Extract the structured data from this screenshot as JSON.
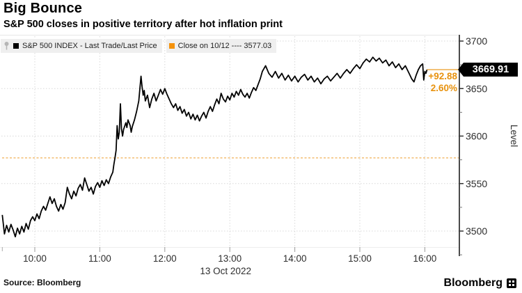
{
  "header": {
    "title": "Big Bounce",
    "subtitle": "S&P 500 closes in positive territory after hot inflation print"
  },
  "legend": {
    "items": [
      {
        "label": "S&P 500 INDEX - Last Trade/Last Price",
        "marker_color": "#000000"
      },
      {
        "label": "Close on 10/12 ---- 3577.03",
        "marker_color": "#f5920b"
      }
    ]
  },
  "price_flag": {
    "value": "3669.91",
    "change": "+92.88",
    "change_pct": "2.60%"
  },
  "axes": {
    "y_label": "Level",
    "y_ticks": [
      3500,
      3550,
      3600,
      3650,
      3700
    ],
    "y_minor_ticks": [
      3475,
      3525,
      3575,
      3625,
      3675
    ],
    "x_ticks": [
      "10:00",
      "11:00",
      "12:00",
      "13:00",
      "14:00",
      "15:00",
      "16:00"
    ],
    "date": "13 Oct 2022"
  },
  "footer": {
    "source": "Source: Bloomberg",
    "brand": "Bloomberg"
  },
  "colors": {
    "line": "#000000",
    "close_line": "#f0b055",
    "accent_orange": "#e8920e",
    "grid": "#d8d8d8",
    "axis": "#4a4a4a",
    "tick_label": "#2d2d2d",
    "legend_bg": "#efefef"
  },
  "chart_data": {
    "type": "line",
    "title": "Big Bounce",
    "subtitle": "S&P 500 closes in positive territory after hot inflation print",
    "xlabel": "13 Oct 2022 (09:30 - 16:00)",
    "ylabel": "Level",
    "ylim": [
      3475,
      3710
    ],
    "x_unit": "minutes_after_0930",
    "x_tick_labels": [
      "10:00",
      "11:00",
      "12:00",
      "13:00",
      "14:00",
      "15:00",
      "16:00"
    ],
    "grid": true,
    "legend_position": "top",
    "reference_line": {
      "name": "Close on 10/12",
      "value": 3577.03,
      "style": "dashed"
    },
    "last": {
      "value": 3669.91,
      "change": 92.88,
      "change_pct": 2.6
    },
    "series": [
      {
        "name": "S&P 500 INDEX - Last Trade/Last Price",
        "points": [
          [
            0,
            3517
          ],
          [
            2,
            3497
          ],
          [
            4,
            3506
          ],
          [
            6,
            3499
          ],
          [
            8,
            3507
          ],
          [
            10,
            3501
          ],
          [
            12,
            3494
          ],
          [
            14,
            3503
          ],
          [
            16,
            3497
          ],
          [
            18,
            3505
          ],
          [
            20,
            3499
          ],
          [
            22,
            3508
          ],
          [
            24,
            3502
          ],
          [
            26,
            3511
          ],
          [
            28,
            3515
          ],
          [
            30,
            3511
          ],
          [
            32,
            3518
          ],
          [
            34,
            3513
          ],
          [
            36,
            3521
          ],
          [
            38,
            3526
          ],
          [
            40,
            3522
          ],
          [
            42,
            3529
          ],
          [
            44,
            3536
          ],
          [
            46,
            3529
          ],
          [
            48,
            3534
          ],
          [
            50,
            3526
          ],
          [
            52,
            3521
          ],
          [
            54,
            3528
          ],
          [
            56,
            3523
          ],
          [
            58,
            3530
          ],
          [
            60,
            3546
          ],
          [
            62,
            3539
          ],
          [
            64,
            3534
          ],
          [
            66,
            3542
          ],
          [
            68,
            3537
          ],
          [
            70,
            3545
          ],
          [
            72,
            3549
          ],
          [
            74,
            3543
          ],
          [
            76,
            3556
          ],
          [
            78,
            3549
          ],
          [
            80,
            3542
          ],
          [
            82,
            3546
          ],
          [
            84,
            3539
          ],
          [
            86,
            3547
          ],
          [
            88,
            3551
          ],
          [
            90,
            3546
          ],
          [
            92,
            3553
          ],
          [
            94,
            3548
          ],
          [
            96,
            3554
          ],
          [
            98,
            3550
          ],
          [
            100,
            3557
          ],
          [
            102,
            3562
          ],
          [
            103,
            3570
          ],
          [
            104,
            3577
          ],
          [
            105,
            3585
          ],
          [
            106,
            3611
          ],
          [
            107,
            3597
          ],
          [
            108,
            3604
          ],
          [
            109,
            3634
          ],
          [
            110,
            3608
          ],
          [
            111,
            3600
          ],
          [
            112,
            3607
          ],
          [
            114,
            3614
          ],
          [
            115,
            3609
          ],
          [
            116,
            3617
          ],
          [
            118,
            3611
          ],
          [
            119,
            3604
          ],
          [
            120,
            3610
          ],
          [
            122,
            3617
          ],
          [
            124,
            3626
          ],
          [
            126,
            3637
          ],
          [
            128,
            3663
          ],
          [
            129,
            3652
          ],
          [
            130,
            3643
          ],
          [
            131,
            3648
          ],
          [
            132,
            3637
          ],
          [
            134,
            3643
          ],
          [
            136,
            3630
          ],
          [
            138,
            3639
          ],
          [
            140,
            3645
          ],
          [
            142,
            3637
          ],
          [
            144,
            3643
          ],
          [
            146,
            3649
          ],
          [
            148,
            3644
          ],
          [
            150,
            3650
          ],
          [
            152,
            3644
          ],
          [
            154,
            3639
          ],
          [
            156,
            3634
          ],
          [
            158,
            3630
          ],
          [
            160,
            3634
          ],
          [
            162,
            3627
          ],
          [
            164,
            3631
          ],
          [
            166,
            3624
          ],
          [
            168,
            3628
          ],
          [
            170,
            3621
          ],
          [
            172,
            3625
          ],
          [
            174,
            3618
          ],
          [
            176,
            3623
          ],
          [
            178,
            3617
          ],
          [
            180,
            3622
          ],
          [
            182,
            3616
          ],
          [
            184,
            3621
          ],
          [
            186,
            3625
          ],
          [
            188,
            3619
          ],
          [
            190,
            3626
          ],
          [
            192,
            3631
          ],
          [
            194,
            3626
          ],
          [
            196,
            3633
          ],
          [
            198,
            3639
          ],
          [
            200,
            3634
          ],
          [
            202,
            3645
          ],
          [
            204,
            3639
          ],
          [
            206,
            3636
          ],
          [
            208,
            3642
          ],
          [
            210,
            3638
          ],
          [
            212,
            3645
          ],
          [
            214,
            3641
          ],
          [
            216,
            3647
          ],
          [
            218,
            3643
          ],
          [
            220,
            3649
          ],
          [
            222,
            3644
          ],
          [
            224,
            3641
          ],
          [
            226,
            3645
          ],
          [
            228,
            3640
          ],
          [
            230,
            3646
          ],
          [
            232,
            3651
          ],
          [
            234,
            3648
          ],
          [
            236,
            3654
          ],
          [
            238,
            3660
          ],
          [
            240,
            3668
          ],
          [
            243,
            3674
          ],
          [
            246,
            3666
          ],
          [
            249,
            3662
          ],
          [
            252,
            3668
          ],
          [
            255,
            3661
          ],
          [
            258,
            3666
          ],
          [
            261,
            3659
          ],
          [
            264,
            3664
          ],
          [
            267,
            3658
          ],
          [
            270,
            3663
          ],
          [
            273,
            3657
          ],
          [
            276,
            3662
          ],
          [
            279,
            3665
          ],
          [
            282,
            3659
          ],
          [
            285,
            3663
          ],
          [
            288,
            3657
          ],
          [
            291,
            3661
          ],
          [
            294,
            3655
          ],
          [
            297,
            3660
          ],
          [
            300,
            3663
          ],
          [
            303,
            3658
          ],
          [
            306,
            3662
          ],
          [
            309,
            3666
          ],
          [
            312,
            3661
          ],
          [
            315,
            3666
          ],
          [
            318,
            3670
          ],
          [
            321,
            3666
          ],
          [
            324,
            3671
          ],
          [
            327,
            3675
          ],
          [
            330,
            3671
          ],
          [
            333,
            3677
          ],
          [
            336,
            3681
          ],
          [
            339,
            3678
          ],
          [
            342,
            3683
          ],
          [
            345,
            3679
          ],
          [
            348,
            3682
          ],
          [
            351,
            3677
          ],
          [
            354,
            3680
          ],
          [
            357,
            3674
          ],
          [
            360,
            3678
          ],
          [
            363,
            3672
          ],
          [
            366,
            3676
          ],
          [
            369,
            3670
          ],
          [
            372,
            3674
          ],
          [
            375,
            3667
          ],
          [
            378,
            3660
          ],
          [
            380,
            3657
          ],
          [
            382,
            3664
          ],
          [
            384,
            3670
          ],
          [
            386,
            3674
          ],
          [
            388,
            3676
          ],
          [
            389,
            3659
          ],
          [
            390,
            3668
          ],
          [
            391,
            3666
          ],
          [
            392,
            3669.91
          ]
        ]
      }
    ]
  }
}
